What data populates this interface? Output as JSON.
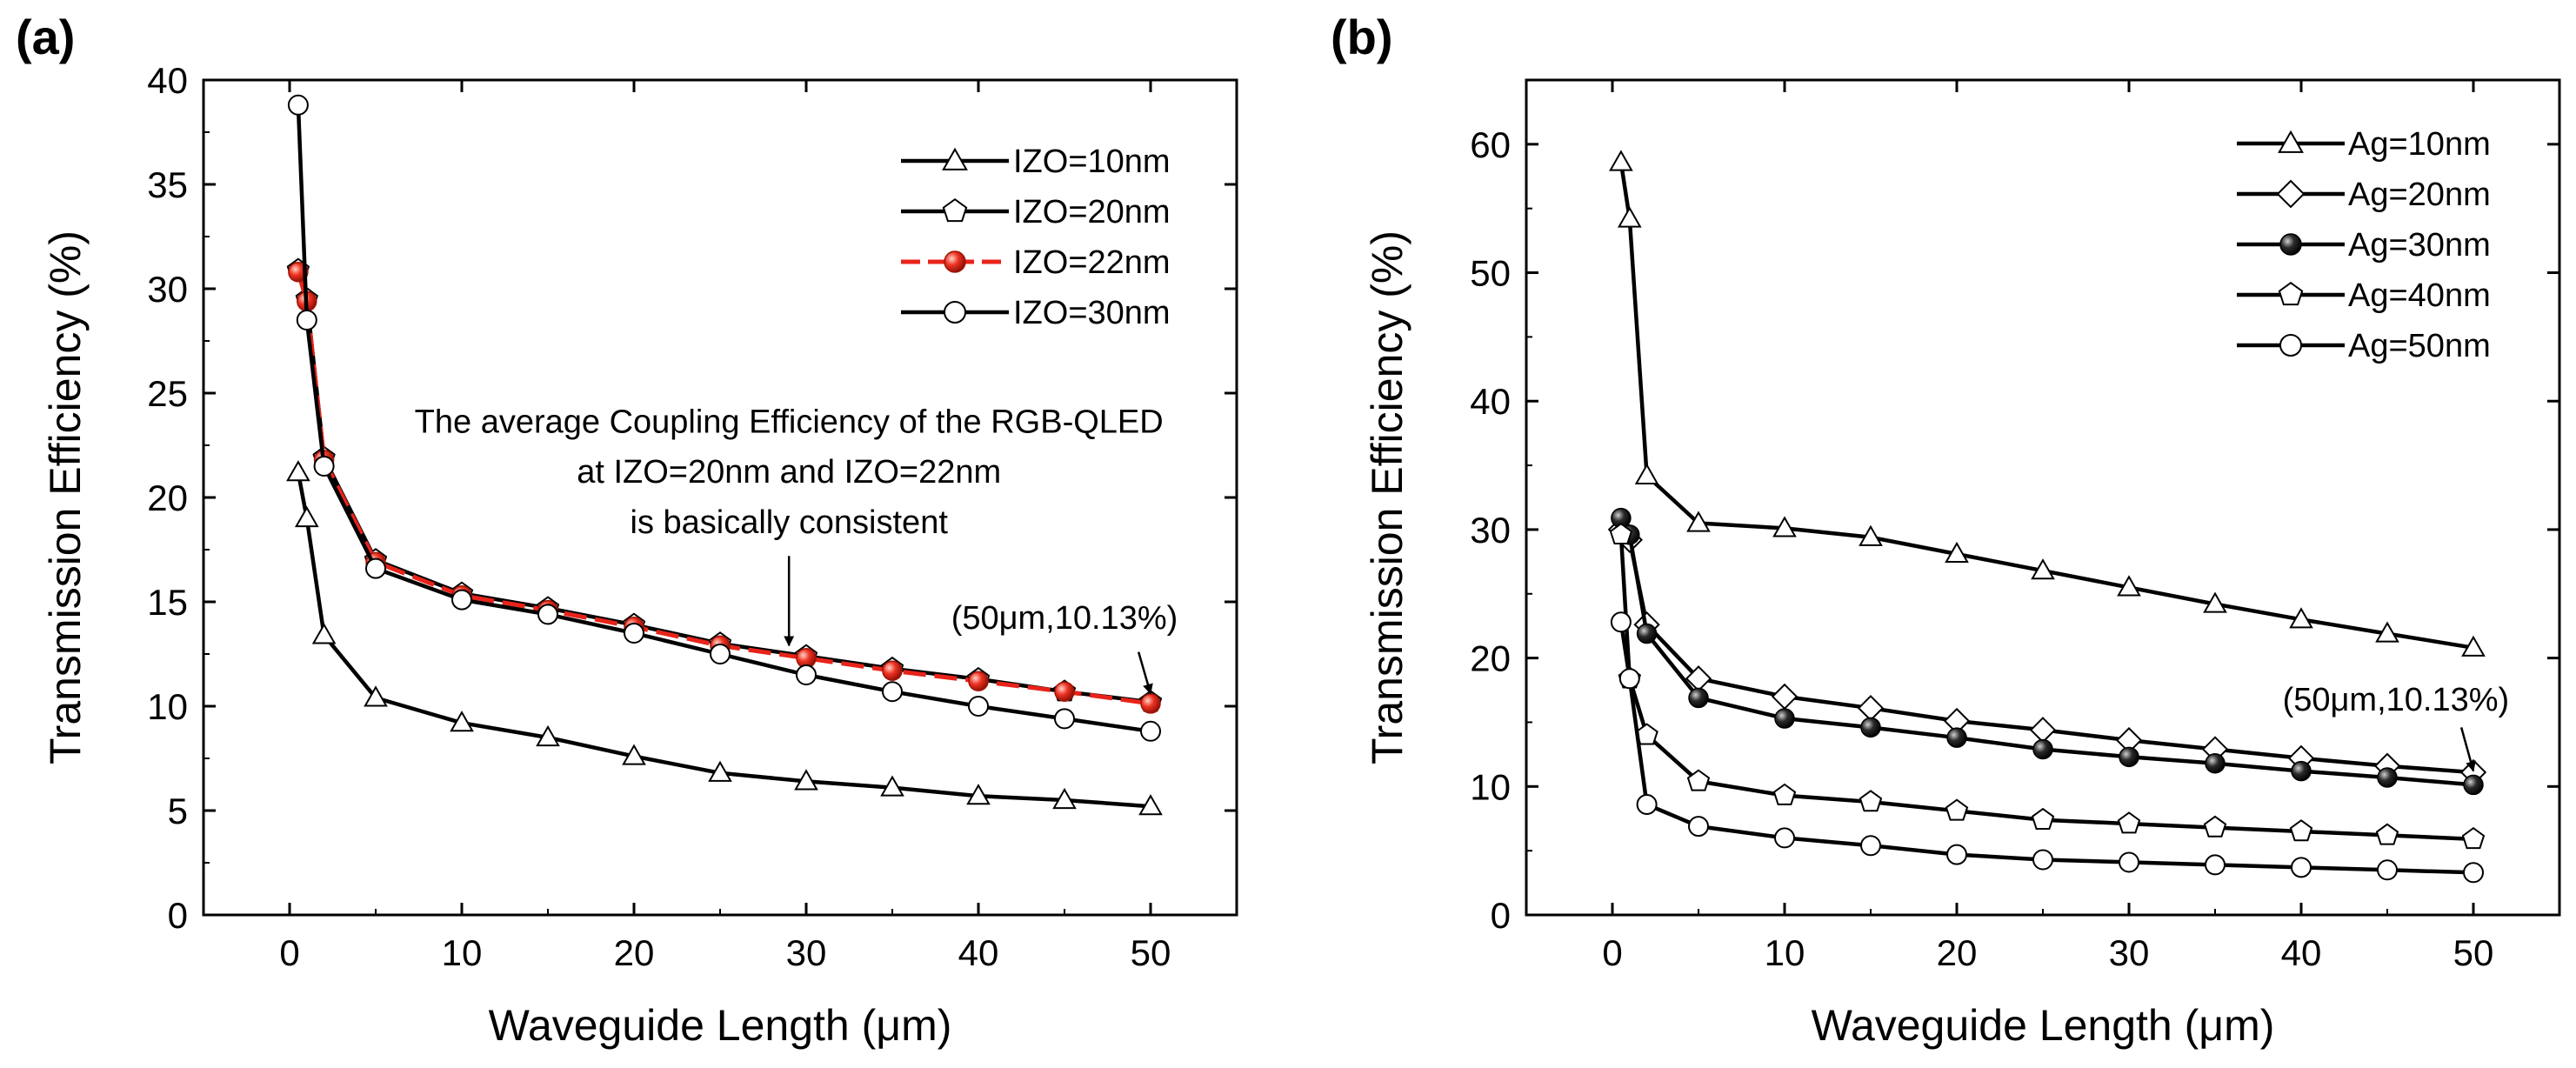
{
  "chart_data": [
    {
      "panel": "(a)",
      "type": "line",
      "xlabel": "Waveguide Length (μm)",
      "ylabel": "Transmission Efficiency (%)",
      "xlim": [
        -5,
        55
      ],
      "ylim": [
        0,
        40
      ],
      "xticks": [
        0,
        10,
        20,
        30,
        40,
        50
      ],
      "yticks": [
        0,
        5,
        10,
        15,
        20,
        25,
        30,
        35,
        40
      ],
      "legend_position": "top-right",
      "x": [
        0.5,
        1,
        2,
        5,
        10,
        15,
        20,
        25,
        30,
        35,
        40,
        45,
        50
      ],
      "series": [
        {
          "name": "IZO=10nm",
          "marker": "triangle",
          "color": "#000000",
          "values": [
            21.2,
            19.0,
            13.4,
            10.4,
            9.2,
            8.5,
            7.6,
            6.8,
            6.4,
            6.1,
            5.7,
            5.5,
            5.2
          ]
        },
        {
          "name": "IZO=20nm",
          "marker": "pentagon",
          "color": "#000000",
          "values": [
            30.9,
            29.5,
            21.9,
            17.0,
            15.4,
            14.7,
            13.9,
            13.0,
            12.4,
            11.8,
            11.3,
            10.7,
            10.2
          ]
        },
        {
          "name": "IZO=22nm",
          "marker": "sphere",
          "color": "#e8231a",
          "dashed": true,
          "values": [
            30.8,
            29.4,
            21.8,
            16.9,
            15.3,
            14.6,
            13.8,
            12.9,
            12.3,
            11.7,
            11.2,
            10.7,
            10.13
          ]
        },
        {
          "name": "IZO=30nm",
          "marker": "circle",
          "color": "#000000",
          "values": [
            38.8,
            28.5,
            21.5,
            16.6,
            15.1,
            14.4,
            13.5,
            12.5,
            11.5,
            10.7,
            10.0,
            9.4,
            8.8
          ]
        }
      ],
      "annotations": [
        {
          "text": "The average Coupling Efficiency of the RGB-QLED",
          "x": 29,
          "y": 23.1
        },
        {
          "text": "at IZO=20nm and IZO=22nm",
          "x": 29,
          "y": 20.7
        },
        {
          "text": "is basically consistent",
          "x": 29,
          "y": 18.3
        },
        {
          "text": "(50μm,10.13%)",
          "x": 45,
          "y": 13.7
        }
      ],
      "arrows": [
        {
          "from": [
            29,
            17.2
          ],
          "to": [
            29,
            12.9
          ]
        },
        {
          "from": [
            49.3,
            12.6
          ],
          "to": [
            50,
            10.6
          ]
        }
      ]
    },
    {
      "panel": "(b)",
      "type": "line",
      "xlabel": "Waveguide Length (μm)",
      "ylabel": "Transmission Efficiency (%)",
      "xlim": [
        -5,
        55
      ],
      "ylim": [
        0,
        65
      ],
      "xticks": [
        0,
        10,
        20,
        30,
        40,
        50
      ],
      "yticks": [
        0,
        10,
        20,
        30,
        40,
        50,
        60
      ],
      "legend_position": "top-right",
      "x": [
        0.5,
        1,
        2,
        5,
        10,
        15,
        20,
        25,
        30,
        35,
        40,
        45,
        50
      ],
      "series": [
        {
          "name": "Ag=10nm",
          "marker": "triangle",
          "color": "#000000",
          "values": [
            58.6,
            54.2,
            34.2,
            30.5,
            30.1,
            29.4,
            28.1,
            26.8,
            25.5,
            24.2,
            23.0,
            21.9,
            20.8
          ]
        },
        {
          "name": "Ag=20nm",
          "marker": "diamond",
          "color": "#000000",
          "values": [
            30.0,
            29.2,
            22.6,
            18.4,
            17.0,
            16.1,
            15.1,
            14.4,
            13.6,
            12.9,
            12.2,
            11.6,
            11.1
          ]
        },
        {
          "name": "Ag=30nm",
          "marker": "sphere",
          "color": "#000000",
          "values": [
            30.9,
            29.6,
            21.9,
            16.9,
            15.3,
            14.6,
            13.8,
            12.9,
            12.3,
            11.8,
            11.2,
            10.7,
            10.13
          ]
        },
        {
          "name": "Ag=40nm",
          "marker": "pentagon",
          "color": "#000000",
          "values": [
            29.6,
            18.4,
            14.0,
            10.4,
            9.3,
            8.8,
            8.1,
            7.4,
            7.1,
            6.8,
            6.5,
            6.2,
            5.9
          ]
        },
        {
          "name": "Ag=50nm",
          "marker": "circle",
          "color": "#000000",
          "values": [
            22.8,
            18.4,
            8.6,
            6.9,
            6.0,
            5.4,
            4.7,
            4.3,
            4.1,
            3.9,
            3.7,
            3.5,
            3.3
          ]
        }
      ],
      "annotations": [
        {
          "text": "(50μm,10.13%)",
          "x": 45.5,
          "y": 15.9
        }
      ],
      "arrows": [
        {
          "from": [
            49.3,
            14.6
          ],
          "to": [
            50,
            11.2
          ]
        }
      ]
    }
  ]
}
